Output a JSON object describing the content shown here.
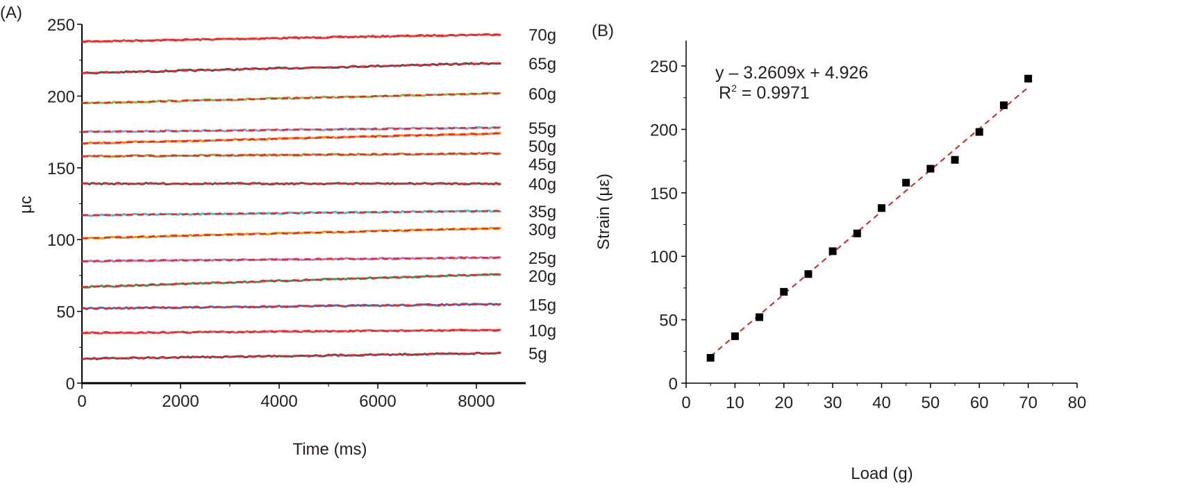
{
  "chart_data": [
    {
      "panel_label": "(A)",
      "type": "line",
      "xlabel": "Time (ms)",
      "ylabel": "μc",
      "xlim": [
        0,
        9000
      ],
      "ylim": [
        0,
        250
      ],
      "xticks": [
        0,
        2000,
        4000,
        6000,
        8000
      ],
      "yticks": [
        0,
        50,
        100,
        150,
        200,
        250
      ],
      "grid": false,
      "fit_line_color": "#ff2020",
      "fit_line_style": "dashed",
      "x_range": [
        0,
        8500
      ],
      "series": [
        {
          "name": "70g",
          "start": 238,
          "end": 243,
          "color": "#e8413c"
        },
        {
          "name": "65g",
          "start": 216,
          "end": 223,
          "color": "#505050"
        },
        {
          "name": "60g",
          "start": 195,
          "end": 202,
          "color": "#7ac143"
        },
        {
          "name": "55g",
          "start": 175,
          "end": 178,
          "color": "#6fa8dc"
        },
        {
          "name": "50g",
          "start": 167,
          "end": 174,
          "color": "#f58220"
        },
        {
          "name": "45g",
          "start": 158,
          "end": 160,
          "color": "#9a9a3a"
        },
        {
          "name": "40g",
          "start": 139,
          "end": 139,
          "color": "#6b5050"
        },
        {
          "name": "35g",
          "start": 117,
          "end": 120,
          "color": "#33c4d0"
        },
        {
          "name": "30g",
          "start": 101,
          "end": 108,
          "color": "#d4a017"
        },
        {
          "name": "25g",
          "start": 85,
          "end": 87.5,
          "color": "#a77fc7"
        },
        {
          "name": "20g",
          "start": 67,
          "end": 76,
          "color": "#2ca05a"
        },
        {
          "name": "15g",
          "start": 52,
          "end": 55,
          "color": "#3a6fc4"
        },
        {
          "name": "10g",
          "start": 35,
          "end": 37,
          "color": "#e05050"
        },
        {
          "name": "5g",
          "start": 17,
          "end": 21,
          "color": "#555555"
        }
      ]
    },
    {
      "panel_label": "(B)",
      "type": "scatter",
      "xlabel": "Load (g)",
      "ylabel": "Strain (με)",
      "xlim": [
        0,
        80
      ],
      "ylim": [
        0,
        270
      ],
      "xticks": [
        0,
        10,
        20,
        30,
        40,
        50,
        60,
        70,
        80
      ],
      "yticks": [
        0,
        50,
        100,
        150,
        200,
        250
      ],
      "grid": false,
      "x": [
        5,
        10,
        15,
        20,
        25,
        30,
        35,
        40,
        45,
        50,
        55,
        60,
        65,
        70
      ],
      "y": [
        20,
        37,
        52,
        72,
        86,
        104,
        118,
        138,
        158,
        169,
        176,
        198,
        219,
        240
      ],
      "marker": "square",
      "marker_color": "#000000",
      "fit": {
        "slope": 3.2609,
        "intercept": 4.926,
        "color": "#e02020",
        "style": "dashed"
      },
      "annotation": {
        "equation": "y – 3.2609x + 4.926",
        "r2_prefix": "R",
        "r2_sup": "2",
        "r2_value": " = 0.9971"
      }
    }
  ]
}
